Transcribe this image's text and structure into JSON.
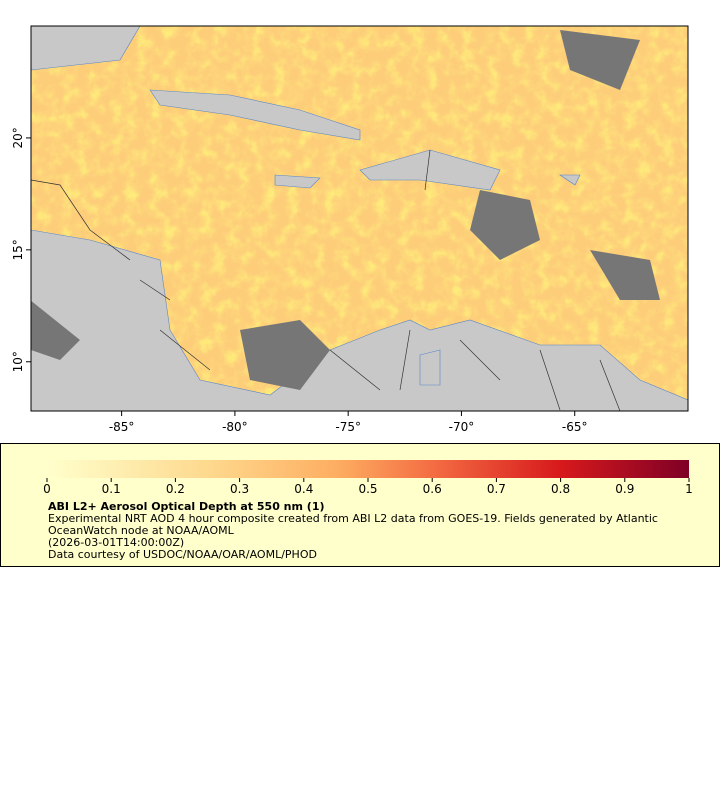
{
  "map": {
    "xlim": [
      -89,
      -60
    ],
    "ylim": [
      7.8,
      25
    ],
    "xticks": [
      {
        "value": -85,
        "label": "-85°"
      },
      {
        "value": -80,
        "label": "-80°"
      },
      {
        "value": -75,
        "label": "-75°"
      },
      {
        "value": -70,
        "label": "-70°"
      },
      {
        "value": -65,
        "label": "-65°"
      }
    ],
    "yticks": [
      {
        "value": 20,
        "label": "20°"
      },
      {
        "value": 15,
        "label": "15°"
      },
      {
        "value": 10,
        "label": "10°"
      }
    ]
  },
  "colorbar": {
    "lim": [
      0,
      1
    ],
    "ticks": [
      0,
      0.1,
      0.2,
      0.3,
      0.4,
      0.5,
      0.6,
      0.7,
      0.8,
      0.9,
      1
    ]
  },
  "legend": {
    "title": "ABI L2+ Aerosol Optical Depth at 550 nm (1)",
    "lines": [
      "Experimental NRT AOD 4 hour composite created from ABI L2 data from GOES-19. Fields generated by Atlantic",
      "OceanWatch node at NOAA/AOML",
      "(2026-03-01T14:00:00Z)",
      "Data courtesy of USDOC/NOAA/OAR/AOML/PHOD"
    ]
  }
}
